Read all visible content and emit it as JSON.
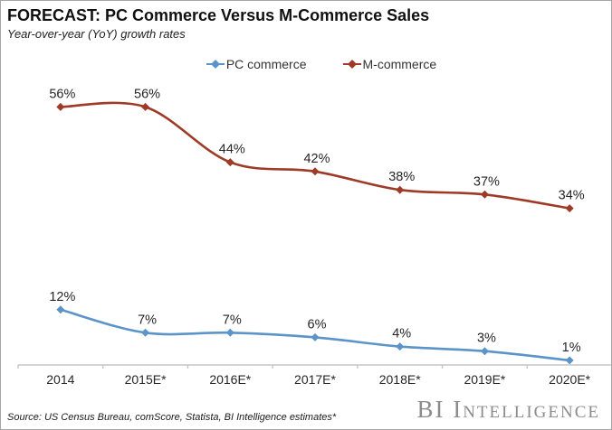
{
  "header": {
    "title": "FORECAST: PC Commerce Versus M-Commerce Sales",
    "subtitle": "Year-over-year (YoY) growth rates"
  },
  "chart_data": {
    "type": "line",
    "title": "FORECAST: PC Commerce Versus M-Commerce Sales",
    "subtitle": "Year-over-year (YoY) growth rates",
    "categories": [
      "2014",
      "2015E*",
      "2016E*",
      "2017E*",
      "2018E*",
      "2019E*",
      "2020E*"
    ],
    "series": [
      {
        "name": "PC commerce",
        "color": "#5b94c8",
        "values": [
          12,
          7,
          7,
          6,
          4,
          3,
          1
        ]
      },
      {
        "name": "M-commerce",
        "color": "#9e3a26",
        "values": [
          56,
          56,
          44,
          42,
          38,
          37,
          34
        ]
      }
    ],
    "value_suffix": "%",
    "ylim": [
      0,
      60
    ],
    "grid": false,
    "legend_position": "top",
    "smooth": true,
    "marker": "diamond",
    "axis_color": "#c6c6c6",
    "label_color": "#262626"
  },
  "footer": {
    "source": "Source: US Census Bureau, comScore, Statista, BI Intelligence estimates*",
    "brand": "BI Intelligence"
  }
}
